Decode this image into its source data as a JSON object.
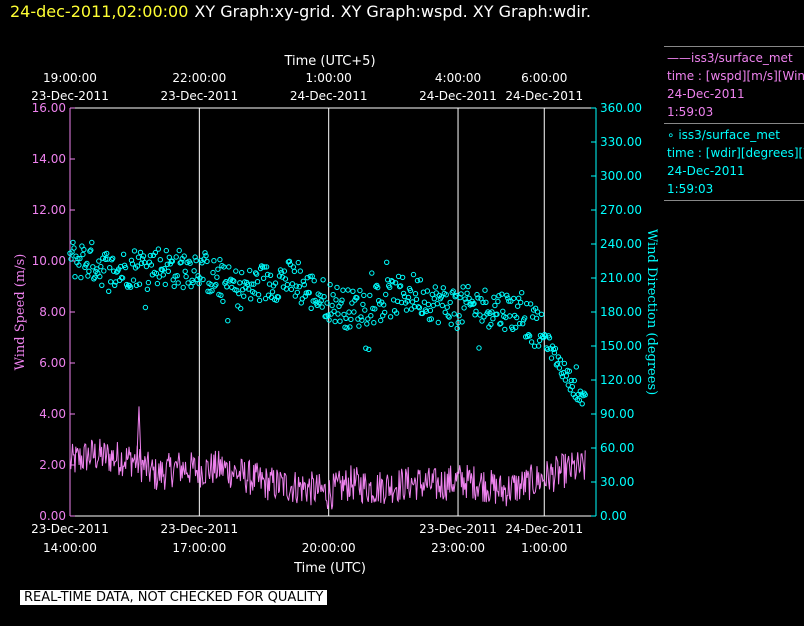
{
  "header": {
    "timestamp": "24-dec-2011,02:00:00",
    "titles": "XY Graph:xy-grid.  XY Graph:wspd.  XY Graph:wdir."
  },
  "legend": {
    "wspd": {
      "name": "——iss3/surface_met",
      "field": "time : [wspd][m/s][Wind",
      "date": "24-Dec-2011",
      "time": "1:59:03"
    },
    "wdir": {
      "name": "∘ iss3/surface_met",
      "field": "time : [wdir][degrees][W",
      "date": "24-Dec-2011",
      "time": "1:59:03"
    }
  },
  "disclaimer": "REAL-TIME DATA, NOT CHECKED FOR QUALITY",
  "colors": {
    "wspd": "#ee82ee",
    "wdir": "#00ffff",
    "grid": "#ffffff",
    "axis_text": "#ffffff"
  },
  "chart_data": {
    "type": "line",
    "top_axis": {
      "title": "Time (UTC+5)",
      "ticks": [
        {
          "hours": 0,
          "time": "19:00:00",
          "date": "23-Dec-2011"
        },
        {
          "hours": 3,
          "time": "22:00:00",
          "date": "23-Dec-2011"
        },
        {
          "hours": 6,
          "time": "1:00:00",
          "date": "24-Dec-2011"
        },
        {
          "hours": 9,
          "time": "4:00:00",
          "date": "24-Dec-2011"
        },
        {
          "hours": 11,
          "time": "6:00:00",
          "date": "24-Dec-2011"
        }
      ]
    },
    "bottom_axis": {
      "title": "Time (UTC)",
      "ticks": [
        {
          "hours": 0,
          "date": "23-Dec-2011",
          "time": "14:00:00"
        },
        {
          "hours": 3,
          "date": "23-Dec-2011",
          "time": "17:00:00"
        },
        {
          "hours": 6,
          "date": "",
          "time": "20:00:00"
        },
        {
          "hours": 9,
          "date": "23-Dec-2011",
          "time": "23:00:00"
        },
        {
          "hours": 11,
          "date": "24-Dec-2011",
          "time": "1:00:00"
        }
      ],
      "xlim_hours": [
        0,
        12.2
      ]
    },
    "left_axis": {
      "label": "Wind Speed (m/s)",
      "ylim": [
        0,
        16
      ],
      "ticks": [
        "0.00",
        "2.00",
        "4.00",
        "6.00",
        "8.00",
        "10.00",
        "12.00",
        "14.00",
        "16.00"
      ]
    },
    "right_axis": {
      "label": "Wind Direction (degrees)",
      "ylim": [
        0,
        360
      ],
      "ticks": [
        "0.00",
        "30.00",
        "60.00",
        "90.00",
        "120.00",
        "150.00",
        "180.00",
        "210.00",
        "240.00",
        "270.00",
        "300.00",
        "330.00",
        "360.00"
      ]
    },
    "series": [
      {
        "name": "wspd",
        "style": "line",
        "axis": "left",
        "x_hours": [
          0,
          0.5,
          1,
          1.5,
          2,
          2.5,
          3,
          3.5,
          4,
          4.5,
          5,
          5.5,
          6,
          6.5,
          7,
          7.5,
          8,
          8.5,
          9,
          9.5,
          10,
          10.5,
          11,
          11.5,
          11.95
        ],
        "values": [
          2.1,
          2.4,
          2.3,
          2.2,
          1.6,
          1.9,
          1.8,
          1.9,
          1.6,
          1.3,
          1.2,
          1.1,
          0.9,
          1.3,
          1.1,
          1.2,
          1.3,
          1.2,
          1.4,
          1.3,
          1.0,
          1.2,
          1.5,
          1.8,
          1.9
        ]
      },
      {
        "name": "wdir",
        "style": "scatter",
        "axis": "right",
        "x_hours": [
          0,
          0.5,
          1,
          1.5,
          2,
          2.5,
          3,
          3.5,
          4,
          4.5,
          5,
          5.5,
          6,
          6.5,
          7,
          7.5,
          8,
          8.5,
          9,
          9.5,
          10,
          10.5,
          11,
          11.5,
          11.95
        ],
        "values": [
          227,
          225,
          215,
          220,
          222,
          218,
          220,
          205,
          200,
          205,
          210,
          200,
          190,
          182,
          187,
          193,
          197,
          188,
          185,
          185,
          183,
          178,
          158,
          125,
          100
        ]
      }
    ]
  }
}
